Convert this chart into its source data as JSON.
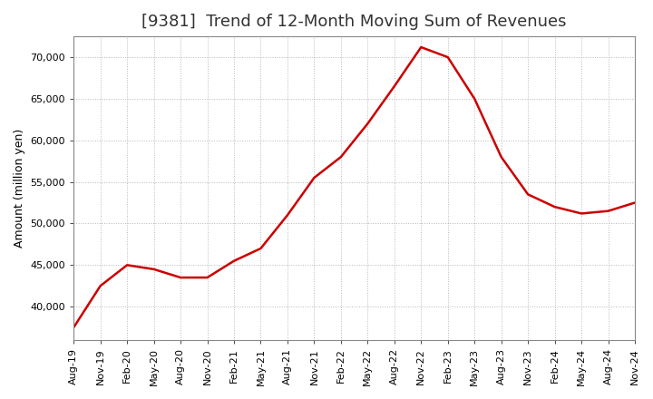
{
  "title": "[9381]  Trend of 12-Month Moving Sum of Revenues",
  "ylabel": "Amount (million yen)",
  "line_color": "#cc0000",
  "line_width": 1.8,
  "background_color": "#ffffff",
  "plot_bg_color": "#ffffff",
  "grid_color": "#999999",
  "x_labels": [
    "Aug-19",
    "Nov-19",
    "Feb-20",
    "May-20",
    "Aug-20",
    "Nov-20",
    "Feb-21",
    "May-21",
    "Aug-21",
    "Nov-21",
    "Feb-22",
    "May-22",
    "Aug-22",
    "Nov-22",
    "Feb-23",
    "May-23",
    "Aug-23",
    "Nov-23",
    "Feb-24",
    "May-24",
    "Aug-24",
    "Nov-24"
  ],
  "values": [
    37500,
    42500,
    45000,
    44500,
    43500,
    43500,
    45500,
    47000,
    51000,
    55500,
    58000,
    62000,
    66500,
    71200,
    70000,
    65000,
    58000,
    53500,
    52000,
    51200,
    51500,
    52500
  ],
  "ylim": [
    36000,
    72500
  ],
  "yticks": [
    40000,
    45000,
    50000,
    55000,
    60000,
    65000,
    70000
  ],
  "title_fontsize": 13,
  "axis_fontsize": 9,
  "tick_fontsize": 8
}
